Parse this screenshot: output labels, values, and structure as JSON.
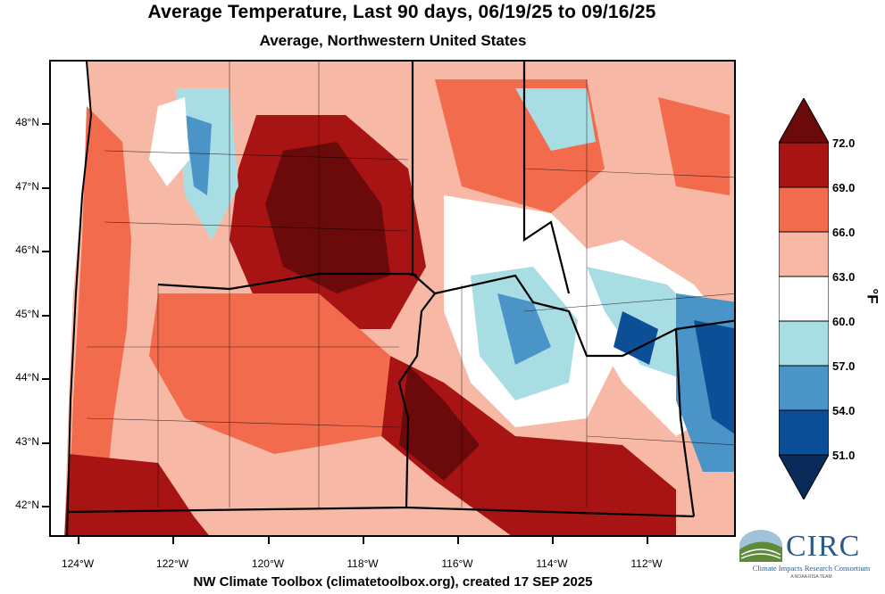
{
  "title": "Average Temperature, Last 90 days, 06/19/25 to 09/16/25",
  "subtitle": "Average, Northwestern United States",
  "footer": "NW Climate Toolbox (climatetoolbox.org), created 17 SEP 2025",
  "lat_labels": [
    "48°N",
    "47°N",
    "46°N",
    "45°N",
    "44°N",
    "43°N",
    "42°N"
  ],
  "lon_labels": [
    "124°W",
    "122°W",
    "120°W",
    "118°W",
    "116°W",
    "114°W",
    "112°W"
  ],
  "colorbar": {
    "unit": "°F",
    "levels": [
      "72.0",
      "69.0",
      "66.0",
      "63.0",
      "60.0",
      "57.0",
      "54.0",
      "51.0"
    ],
    "colors": [
      "#6b0a0a",
      "#a81414",
      "#f26b4c",
      "#f8b8a6",
      "#ffffff",
      "#a9dde4",
      "#4a94c8",
      "#0d4f96",
      "#0a2a5a"
    ]
  },
  "logo": {
    "name": "CIRC",
    "full": "Climate Impacts Research Consortium",
    "tag": "A NOAA RISA TEAM"
  }
}
